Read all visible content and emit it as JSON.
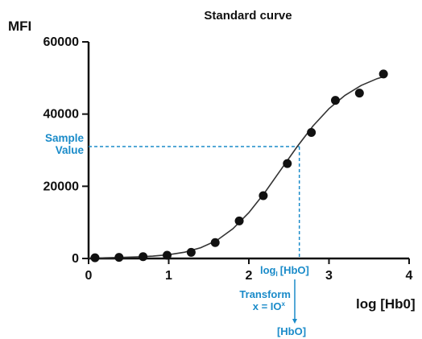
{
  "chart_data": {
    "type": "scatter",
    "title": "Standard curve",
    "xlabel": "log [Hb0]",
    "ylabel": "MFI",
    "xlim": [
      0,
      4
    ],
    "ylim": [
      0,
      60000
    ],
    "x_ticks": [
      "0",
      "1",
      "2",
      "3",
      "4"
    ],
    "y_ticks": [
      "0",
      "20000",
      "40000",
      "60000"
    ],
    "x_tick_values": [
      0,
      1,
      2,
      3,
      4
    ],
    "y_tick_values": [
      0,
      20000,
      40000,
      60000
    ],
    "grid": false,
    "series": [
      {
        "type": "scatter",
        "x": [
          0.08,
          0.38,
          0.68,
          0.98,
          1.28,
          1.58,
          1.88,
          2.18,
          2.48,
          2.78,
          3.08,
          3.38,
          3.68
        ],
        "y": [
          200,
          300,
          500,
          900,
          1700,
          4400,
          10400,
          17400,
          26300,
          34900,
          43800,
          45800,
          51100
        ],
        "color": "#111111"
      },
      {
        "type": "line",
        "x": [
          0.0,
          0.2,
          0.4,
          0.6,
          0.8,
          1.0,
          1.2,
          1.4,
          1.6,
          1.8,
          2.0,
          2.2,
          2.4,
          2.6,
          2.8,
          3.0,
          3.2,
          3.4,
          3.6,
          3.7
        ],
        "y": [
          100,
          180,
          280,
          430,
          650,
          1050,
          1750,
          3000,
          5000,
          8200,
          12700,
          18300,
          24600,
          30900,
          36700,
          41500,
          45200,
          47900,
          49800,
          50500
        ],
        "color": "#333333"
      }
    ],
    "annotations": {
      "sample_value_label": [
        "Sample",
        "Value"
      ],
      "sample_value_y": 31000,
      "sample_log_x": 2.63,
      "log_label": "log",
      "log_sub": "I",
      "log_hb_label": "[HbO]",
      "transform_label": "Transform",
      "transform_formula": "x = IO",
      "transform_sup": "x",
      "result_label": "[HbO]",
      "color": "#1a8bc9"
    }
  }
}
